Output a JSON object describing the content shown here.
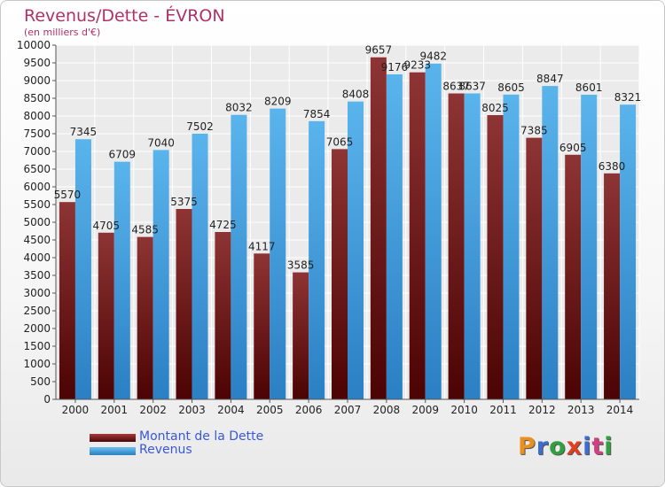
{
  "header": {
    "title": "Revenus/Dette - ÉVRON",
    "subtitle": "(en milliers d'€)"
  },
  "legend": {
    "items": [
      {
        "label": "Montant de la Dette",
        "color": "#7a1f1f"
      },
      {
        "label": "Revenus",
        "color": "#3d9ee0"
      }
    ]
  },
  "logo": {
    "text": "Proxiti",
    "letter_colors": [
      "#e89020",
      "#3a6fd0",
      "#30a040",
      "#e04020",
      "#3a6fd0",
      "#d04080",
      "#30a040"
    ]
  },
  "chart_data": {
    "type": "bar",
    "title": "Revenus/Dette - ÉVRON",
    "subtitle": "(en milliers d'€)",
    "categories": [
      "2000",
      "2001",
      "2002",
      "2003",
      "2004",
      "2005",
      "2006",
      "2007",
      "2008",
      "2009",
      "2010",
      "2011",
      "2012",
      "2013",
      "2014"
    ],
    "series": [
      {
        "name": "Montant de la Dette",
        "color": "#7a1f1f",
        "values": [
          5570,
          4705,
          4585,
          5375,
          4725,
          4117,
          3585,
          7065,
          9657,
          9233,
          8637,
          8025,
          7385,
          6905,
          6380
        ],
        "labels": [
          "5570",
          "4705",
          "4585",
          "5375",
          "4725",
          "4117",
          "3585",
          "7065",
          "9657",
          "9233",
          "8637",
          "8025",
          "7385",
          "6905",
          "6380"
        ]
      },
      {
        "name": "Revenus",
        "color": "#3d9ee0",
        "values": [
          7345,
          6709,
          7040,
          7502,
          8032,
          8209,
          7854,
          8408,
          9176,
          9482,
          8637,
          8605,
          8847,
          8601,
          8321
        ],
        "labels": [
          "7345",
          "6709",
          "7040",
          "7502",
          "8032",
          "8209",
          "7854",
          "8408",
          "9176",
          "9482",
          "8637",
          "8605",
          "8847",
          "8601",
          "8321"
        ]
      }
    ],
    "ylim": [
      0,
      10000
    ],
    "ytick_step": 500,
    "yticks": [
      "0",
      "500",
      "1000",
      "1500",
      "2000",
      "2500",
      "3000",
      "3500",
      "4000",
      "4500",
      "5000",
      "5500",
      "6000",
      "6500",
      "7000",
      "7500",
      "8000",
      "8500",
      "9000",
      "9500",
      "10000"
    ],
    "grid": true,
    "legend_position": "bottom-left"
  }
}
